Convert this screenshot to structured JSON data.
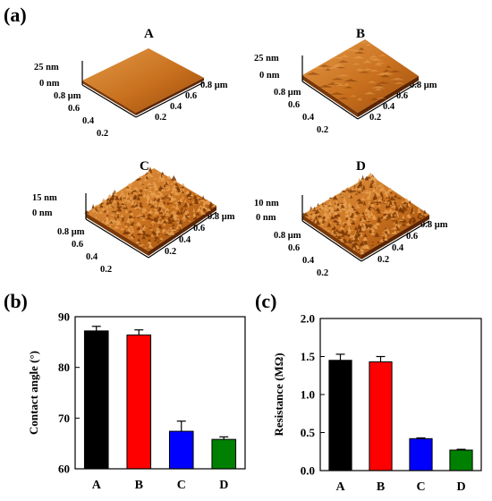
{
  "panel_labels": {
    "a": "(a)",
    "b": "(b)",
    "c": "(c)"
  },
  "afm": [
    {
      "title": "A",
      "z_top": "25 nm",
      "z_bottom": "0 nm",
      "left_ticks": [
        "0.8 μm",
        "0.6",
        "0.4",
        "0.2"
      ],
      "right_ticks": [
        "0.2",
        "0.4",
        "0.6",
        "0.8 μm"
      ],
      "roughness": 0
    },
    {
      "title": "B",
      "z_top": "25 nm",
      "z_bottom": "0 nm",
      "left_ticks": [
        "0.8 μm",
        "0.6",
        "0.4",
        "0.2"
      ],
      "right_ticks": [
        "0.2",
        "0.4",
        "0.6",
        "0.8 μm"
      ],
      "roughness": 1
    },
    {
      "title": "C",
      "z_top": "15 nm",
      "z_bottom": "0 nm",
      "left_ticks": [
        "0.8 μm",
        "0.6",
        "0.4",
        "0.2"
      ],
      "right_ticks": [
        "0.2",
        "0.4",
        "0.6",
        "0.8 μm"
      ],
      "roughness": 3
    },
    {
      "title": "D",
      "z_top": "10 nm",
      "z_bottom": "0 nm",
      "left_ticks": [
        "0.8 μm",
        "0.6",
        "0.4",
        "0.2"
      ],
      "right_ticks": [
        "0.2",
        "0.4",
        "0.6",
        "0.8 μm"
      ],
      "roughness": 3
    }
  ],
  "afm_colors": {
    "light": "#e8a050",
    "mid": "#c8701e",
    "dark": "#7a3806",
    "shadow": "#5a2402"
  },
  "chart_data": [
    {
      "type": "bar",
      "categories": [
        "A",
        "B",
        "C",
        "D"
      ],
      "values": [
        87.2,
        86.4,
        67.4,
        65.8
      ],
      "errors": [
        0.9,
        1.0,
        2.0,
        0.5
      ],
      "colors": [
        "#000000",
        "#ff0000",
        "#0000ff",
        "#008000"
      ],
      "title": "",
      "xlabel": "",
      "ylabel": "Contact angle (°)",
      "ylim": [
        60,
        90
      ],
      "yticks": [
        60,
        70,
        80,
        90
      ],
      "ytick_labels": [
        "60",
        "70",
        "80",
        "90"
      ]
    },
    {
      "type": "bar",
      "categories": [
        "A",
        "B",
        "C",
        "D"
      ],
      "values": [
        1.45,
        1.43,
        0.42,
        0.27
      ],
      "errors": [
        0.08,
        0.07,
        0.01,
        0.01
      ],
      "colors": [
        "#000000",
        "#ff0000",
        "#0000ff",
        "#008000"
      ],
      "title": "",
      "xlabel": "",
      "ylabel": "Resistance (MΩ)",
      "ylim": [
        0,
        2.0
      ],
      "yticks": [
        0,
        0.5,
        1.0,
        1.5,
        2.0
      ],
      "ytick_labels": [
        "0.0",
        "0.5",
        "1.0",
        "1.5",
        "2.0"
      ]
    }
  ]
}
